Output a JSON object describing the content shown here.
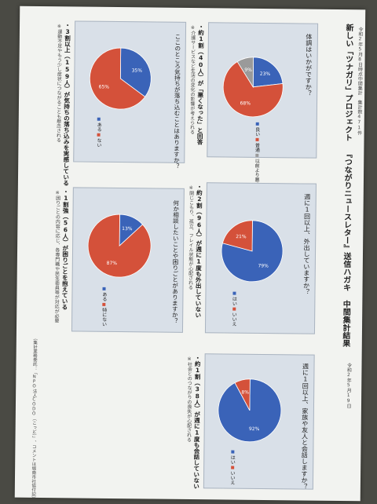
{
  "title": "新しい「ツナガリ」プロジェクト 『つながりニュースレター』送信ハガキ 中間集計結果",
  "subtitle": "令和2年5月8日時点中間集計　集計数471件",
  "date": "令和2年5月19日",
  "colors": {
    "blue": "#3a63b8",
    "red": "#d4513a",
    "gray": "#9a9a9a"
  },
  "panels": [
    {
      "question": "体調はいかがですか？",
      "caption": "・約1割（40人）が「悪くなった」と回答",
      "note": "※介護サービスなど生活の変化の影響が考えられる",
      "chart_data": {
        "type": "pie",
        "categories": [
          "良い",
          "普通",
          "以前より悪くなった"
        ],
        "values": [
          23,
          68,
          9
        ],
        "colors": [
          "#3a63b8",
          "#d4513a",
          "#9a9a9a"
        ]
      }
    },
    {
      "question": "週に1回以上、外出していますか？",
      "caption": "・約2割（96人）が週に1度も外出していない",
      "note": "※閉じこもり、孤立、フレイル状態が心配される",
      "chart_data": {
        "type": "pie",
        "categories": [
          "はい",
          "いいえ"
        ],
        "values": [
          79,
          21
        ],
        "colors": [
          "#3a63b8",
          "#d4513a"
        ]
      }
    },
    {
      "question": "週に1回以上、家族や友人と会話しますか？",
      "caption": "・約1割（38人）が週に1度も会話していない",
      "note": "※社会とのつながりの喪失が心配される",
      "chart_data": {
        "type": "pie",
        "categories": [
          "はい",
          "いいえ"
        ],
        "values": [
          92,
          8
        ],
        "colors": [
          "#3a63b8",
          "#d4513a"
        ]
      }
    },
    {
      "question": "ここのところ気持ちが落ち込むことはありますか？",
      "caption": "・3割以上（159人）が気持ちの落ち込みを実感している",
      "note": "※運動不足やもう少し症状につながることも懸念される",
      "chart_data": {
        "type": "pie",
        "categories": [
          "ある",
          "ない"
        ],
        "values": [
          35,
          65
        ],
        "colors": [
          "#3a63b8",
          "#d4513a"
        ]
      }
    },
    {
      "question": "何か相談したいことや困りごとがありますか？",
      "caption": "・1割強（56人）が困りごとを抱えている",
      "note": "※困りごとの内容に応じ、各専門職や民生委員等が対応が必要",
      "chart_data": {
        "type": "pie",
        "categories": [
          "ある",
          "特にない"
        ],
        "values": [
          13,
          87
        ],
        "colors": [
          "#3a63b8",
          "#d4513a"
        ]
      }
    }
  ],
  "footer1": "（集計業務委託：「NPO法人CODO（こっど）」、コメントは堀南市社協付記）"
}
